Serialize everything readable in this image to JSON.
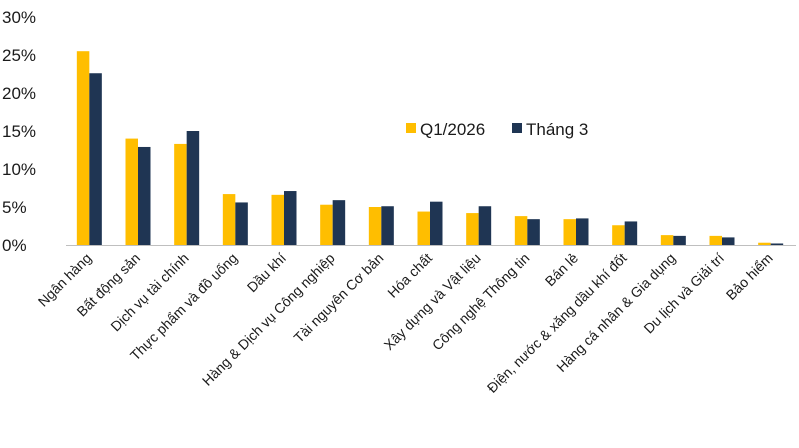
{
  "chart_data": {
    "type": "bar",
    "title": "",
    "xlabel": "",
    "ylabel": "",
    "ylim": [
      0,
      30
    ],
    "y_ticks": [
      "0%",
      "5%",
      "10%",
      "15%",
      "20%",
      "25%",
      "30%"
    ],
    "y_tick_values": [
      0,
      5,
      10,
      15,
      20,
      25,
      30
    ],
    "grid": false,
    "legend_position": "top-right",
    "categories": [
      "Ngân hàng",
      "Bất động sản",
      "Dịch vụ tài chính",
      "Thực phẩm và đồ uống",
      "Dầu khí",
      "Hàng & Dịch vụ Công nghiệp",
      "Tài nguyên Cơ bản",
      "Hóa chất",
      "Xây dựng và Vật liệu",
      "Công nghệ Thông tin",
      "Bán lẻ",
      "Điện, nước & xăng dầu khí đốt",
      "Hàng cá nhân & Gia dụng",
      "Du lịch và Giải trí",
      "Bảo hiểm"
    ],
    "series": [
      {
        "name": "Q1/2026",
        "color": "#FFBE00",
        "values": [
          25.5,
          14.0,
          13.3,
          6.7,
          6.6,
          5.3,
          5.0,
          4.4,
          4.2,
          3.8,
          3.4,
          2.6,
          1.3,
          1.2,
          0.3
        ]
      },
      {
        "name": "Tháng 3",
        "color": "#1F3553",
        "values": [
          22.6,
          12.9,
          15.0,
          5.6,
          7.1,
          5.9,
          5.1,
          5.7,
          5.1,
          3.4,
          3.5,
          3.1,
          1.2,
          1.0,
          0.2
        ]
      }
    ]
  }
}
